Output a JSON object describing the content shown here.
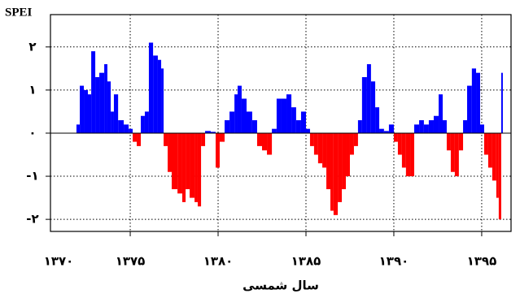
{
  "chart_data": {
    "type": "bar",
    "title": "SPEI",
    "x_label": "سال شمسی",
    "x": [
      1371.94,
      1372.13,
      1372.36,
      1372.59,
      1372.78,
      1373.01,
      1373.24,
      1373.52,
      1373.7,
      1373.89,
      1374.07,
      1374.31,
      1374.63,
      1374.91,
      1375.14,
      1375.37,
      1375.6,
      1375.83,
      1376.06,
      1376.3,
      1376.57,
      1376.76,
      1376.9,
      1377.13,
      1377.36,
      1377.69,
      1377.96,
      1378.15,
      1378.38,
      1378.66,
      1378.84,
      1379.03,
      1379.26,
      1379.58,
      1379.86,
      1380.09,
      1380.37,
      1380.65,
      1380.93,
      1381.11,
      1381.34,
      1381.62,
      1381.94,
      1382.22,
      1382.5,
      1382.78,
      1383.06,
      1383.33,
      1383.61,
      1383.89,
      1384.17,
      1384.44,
      1384.72,
      1385.0,
      1385.23,
      1385.46,
      1385.69,
      1385.93,
      1386.16,
      1386.39,
      1386.57,
      1386.81,
      1387.04,
      1387.27,
      1387.5,
      1387.73,
      1387.96,
      1388.19,
      1388.47,
      1388.7,
      1388.94,
      1389.17,
      1389.44,
      1389.72,
      1390.0,
      1390.23,
      1390.46,
      1390.69,
      1390.93,
      1391.16,
      1391.44,
      1391.71,
      1391.99,
      1392.27,
      1392.55,
      1392.78,
      1393.01,
      1393.24,
      1393.47,
      1393.7,
      1393.94,
      1394.17,
      1394.44,
      1394.68,
      1394.91,
      1395.14,
      1395.37,
      1395.6,
      1395.83,
      1395.97,
      1396.11
    ],
    "values": [
      0.2,
      1.1,
      1.0,
      0.9,
      1.9,
      1.3,
      1.4,
      1.6,
      1.2,
      0.5,
      0.9,
      0.3,
      0.2,
      0.1,
      -0.2,
      -0.3,
      0.4,
      0.5,
      2.1,
      1.8,
      1.7,
      1.5,
      -0.3,
      -0.9,
      -1.3,
      -1.4,
      -1.6,
      -1.3,
      -1.5,
      -1.6,
      -1.7,
      -0.3,
      0.05,
      0.03,
      -0.8,
      -0.2,
      0.3,
      0.5,
      0.9,
      1.1,
      0.8,
      0.5,
      0.3,
      -0.3,
      -0.4,
      -0.5,
      0.1,
      0.8,
      0.8,
      0.9,
      0.6,
      0.3,
      0.5,
      0.1,
      -0.3,
      -0.5,
      -0.7,
      -0.8,
      -1.3,
      -1.8,
      -1.9,
      -1.6,
      -1.3,
      -1.0,
      -0.5,
      -0.3,
      0.3,
      1.3,
      1.6,
      1.2,
      0.6,
      0.1,
      0.05,
      0.2,
      -0.2,
      -0.5,
      -0.8,
      -1.0,
      -1.0,
      0.2,
      0.3,
      0.2,
      0.3,
      0.4,
      0.9,
      0.3,
      -0.4,
      -0.9,
      -1.0,
      -0.4,
      0.3,
      1.1,
      1.5,
      1.4,
      0.2,
      -0.5,
      -0.8,
      -1.1,
      -1.5,
      -2.0,
      1.4
    ],
    "positive_color": "#0000ff",
    "negative_color": "#ff0000",
    "xlim": [
      1370.46,
      1396.67
    ],
    "ylim": [
      -2.28,
      2.75
    ],
    "xticks": [
      {
        "value": 1370,
        "label": "۱۳۷۰"
      },
      {
        "value": 1375,
        "label": "۱۳۷۵"
      },
      {
        "value": 1380,
        "label": "۱۳۸۰"
      },
      {
        "value": 1385,
        "label": "۱۳۸۵"
      },
      {
        "value": 1390,
        "label": "۱۳۹۰"
      },
      {
        "value": 1395,
        "label": "۱۳۹۵"
      }
    ],
    "yticks": [
      {
        "value": -2,
        "label": "-۲"
      },
      {
        "value": -1,
        "label": "-۱"
      },
      {
        "value": 0,
        "label": "٠"
      },
      {
        "value": 1,
        "label": "۱"
      },
      {
        "value": 2,
        "label": "۲"
      }
    ],
    "grid": true
  }
}
